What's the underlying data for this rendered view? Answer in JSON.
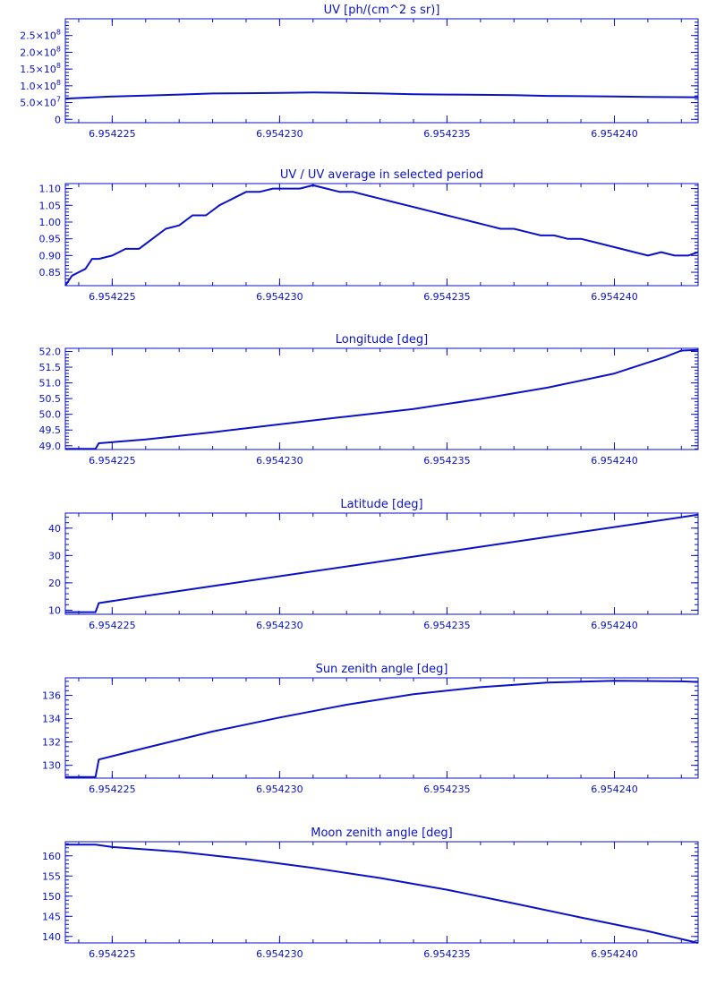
{
  "colors": {
    "ink": "#0a12c8",
    "background": "#ffffff"
  },
  "chart_data": [
    {
      "type": "line",
      "title": "UV [ph/(cm^2 s sr)]",
      "xlabel": "",
      "ylabel": "",
      "xlim": [
        6.9542236,
        6.9542425
      ],
      "ylim": [
        -10000000,
        300000000
      ],
      "xticks": [
        6.954225,
        6.95423,
        6.954235,
        6.95424
      ],
      "xtick_labels": [
        "6.954225",
        "6.954230",
        "6.954235",
        "6.954240"
      ],
      "yticks": [
        0,
        50000000,
        100000000,
        150000000,
        200000000,
        250000000
      ],
      "ytick_labels": [
        {
          "base": "0",
          "exp": ""
        },
        {
          "base": "5.0×10",
          "exp": "7"
        },
        {
          "base": "1.0×10",
          "exp": "8"
        },
        {
          "base": "1.5×10",
          "exp": "8"
        },
        {
          "base": "2.0×10",
          "exp": "8"
        },
        {
          "base": "2.5×10",
          "exp": "8"
        }
      ],
      "grid": false,
      "x": [
        6.9542236,
        6.954225,
        6.954226,
        6.954227,
        6.954228,
        6.954229,
        6.95423,
        6.954231,
        6.954232,
        6.954233,
        6.954234,
        6.954235,
        6.954236,
        6.954237,
        6.954238,
        6.954239,
        6.95424,
        6.954241,
        6.9542425
      ],
      "y": [
        62000000,
        68000000,
        71000000,
        74000000,
        77000000,
        78000000,
        79000000,
        80000000,
        79000000,
        77000000,
        75000000,
        74000000,
        73000000,
        72000000,
        70000000,
        69000000,
        68000000,
        67000000,
        66000000
      ]
    },
    {
      "type": "line",
      "title": "UV / UV average in selected period",
      "xlabel": "",
      "ylabel": "",
      "xlim": [
        6.9542236,
        6.9542425
      ],
      "ylim": [
        0.81,
        1.115
      ],
      "xticks": [
        6.954225,
        6.95423,
        6.954235,
        6.95424
      ],
      "xtick_labels": [
        "6.954225",
        "6.954230",
        "6.954235",
        "6.954240"
      ],
      "yticks": [
        0.85,
        0.9,
        0.95,
        1.0,
        1.05,
        1.1
      ],
      "ytick_labels": [
        "0.85",
        "0.90",
        "0.95",
        "1.00",
        "1.05",
        "1.10"
      ],
      "grid": false,
      "x": [
        6.9542236,
        6.9542238,
        6.954224,
        6.9542242,
        6.9542244,
        6.9542246,
        6.954225,
        6.9542254,
        6.9542258,
        6.9542262,
        6.9542266,
        6.954227,
        6.9542274,
        6.9542278,
        6.9542282,
        6.9542286,
        6.954229,
        6.9542294,
        6.9542298,
        6.9542302,
        6.9542306,
        6.954231,
        6.9542314,
        6.9542318,
        6.9542322,
        6.9542326,
        6.954233,
        6.9542334,
        6.9542338,
        6.9542342,
        6.9542346,
        6.954235,
        6.9542354,
        6.9542358,
        6.9542362,
        6.9542366,
        6.954237,
        6.9542374,
        6.9542378,
        6.9542382,
        6.9542386,
        6.954239,
        6.9542394,
        6.9542398,
        6.9542402,
        6.9542406,
        6.954241,
        6.9542414,
        6.9542418,
        6.9542422,
        6.9542425
      ],
      "y": [
        0.81,
        0.84,
        0.85,
        0.86,
        0.89,
        0.89,
        0.9,
        0.92,
        0.92,
        0.95,
        0.98,
        0.99,
        1.02,
        1.02,
        1.05,
        1.07,
        1.09,
        1.09,
        1.1,
        1.1,
        1.1,
        1.11,
        1.1,
        1.09,
        1.09,
        1.08,
        1.07,
        1.06,
        1.05,
        1.04,
        1.03,
        1.02,
        1.01,
        1.0,
        0.99,
        0.98,
        0.98,
        0.97,
        0.96,
        0.96,
        0.95,
        0.95,
        0.94,
        0.93,
        0.92,
        0.91,
        0.9,
        0.91,
        0.9,
        0.9,
        0.91
      ]
    },
    {
      "type": "line",
      "title": "Longitude [deg]",
      "xlabel": "",
      "ylabel": "",
      "xlim": [
        6.9542236,
        6.9542425
      ],
      "ylim": [
        48.88,
        52.1
      ],
      "xticks": [
        6.954225,
        6.95423,
        6.954235,
        6.95424
      ],
      "xtick_labels": [
        "6.954225",
        "6.954230",
        "6.954235",
        "6.954240"
      ],
      "yticks": [
        49.0,
        49.5,
        50.0,
        50.5,
        51.0,
        51.5,
        52.0
      ],
      "ytick_labels": [
        "49.0",
        "49.5",
        "50.0",
        "50.5",
        "51.0",
        "51.5",
        "52.0"
      ],
      "grid": false,
      "x": [
        6.9542236,
        6.9542245,
        6.9542246,
        6.954226,
        6.954228,
        6.95423,
        6.954232,
        6.954234,
        6.954236,
        6.954238,
        6.95424,
        6.9542415,
        6.954242,
        6.9542425
      ],
      "y": [
        48.9,
        48.9,
        49.08,
        49.2,
        49.43,
        49.68,
        49.93,
        50.17,
        50.49,
        50.85,
        51.3,
        51.82,
        52.03,
        52.05
      ]
    },
    {
      "type": "line",
      "title": "Latitude [deg]",
      "xlabel": "",
      "ylabel": "",
      "xlim": [
        6.9542236,
        6.9542425
      ],
      "ylim": [
        8.5,
        45.5
      ],
      "xticks": [
        6.954225,
        6.95423,
        6.954235,
        6.95424
      ],
      "xtick_labels": [
        "6.954225",
        "6.954230",
        "6.954235",
        "6.954240"
      ],
      "yticks": [
        10,
        20,
        30,
        40
      ],
      "ytick_labels": [
        "10",
        "20",
        "30",
        "40"
      ],
      "grid": false,
      "x": [
        6.9542236,
        6.9542245,
        6.9542246,
        6.954226,
        6.954228,
        6.95423,
        6.954232,
        6.954234,
        6.954236,
        6.954238,
        6.95424,
        6.954242,
        6.9542425
      ],
      "y": [
        9.3,
        9.3,
        12.6,
        15.2,
        18.8,
        22.4,
        26.0,
        29.6,
        33.2,
        36.8,
        40.4,
        44.0,
        44.9
      ]
    },
    {
      "type": "line",
      "title": "Sun zenith angle [deg]",
      "xlabel": "",
      "ylabel": "",
      "xlim": [
        6.9542236,
        6.9542425
      ],
      "ylim": [
        128.9,
        137.5
      ],
      "xticks": [
        6.954225,
        6.95423,
        6.954235,
        6.95424
      ],
      "xtick_labels": [
        "6.954225",
        "6.954230",
        "6.954235",
        "6.954240"
      ],
      "yticks": [
        130,
        132,
        134,
        136
      ],
      "ytick_labels": [
        "130",
        "132",
        "134",
        "136"
      ],
      "grid": false,
      "x": [
        6.9542236,
        6.9542245,
        6.9542246,
        6.954226,
        6.954228,
        6.95423,
        6.954232,
        6.954234,
        6.954236,
        6.954238,
        6.95424,
        6.954242,
        6.9542425
      ],
      "y": [
        129.0,
        129.0,
        130.5,
        131.5,
        132.9,
        134.1,
        135.2,
        136.1,
        136.7,
        137.1,
        137.25,
        137.2,
        137.15
      ]
    },
    {
      "type": "line",
      "title": "Moon zenith angle [deg]",
      "xlabel": "",
      "ylabel": "",
      "xlim": [
        6.9542236,
        6.9542425
      ],
      "ylim": [
        138.4,
        163.5
      ],
      "xticks": [
        6.954225,
        6.95423,
        6.954235,
        6.95424
      ],
      "xtick_labels": [
        "6.954225",
        "6.954230",
        "6.954235",
        "6.954240"
      ],
      "yticks": [
        140,
        145,
        150,
        155,
        160
      ],
      "ytick_labels": [
        "140",
        "145",
        "150",
        "155",
        "160"
      ],
      "grid": false,
      "x": [
        6.9542236,
        6.9542245,
        6.954225,
        6.954227,
        6.954229,
        6.954231,
        6.954233,
        6.954235,
        6.954237,
        6.954239,
        6.954241,
        6.9542425
      ],
      "y": [
        162.8,
        162.8,
        162.2,
        161.0,
        159.2,
        157.0,
        154.5,
        151.6,
        148.2,
        144.7,
        141.3,
        138.4
      ]
    }
  ]
}
